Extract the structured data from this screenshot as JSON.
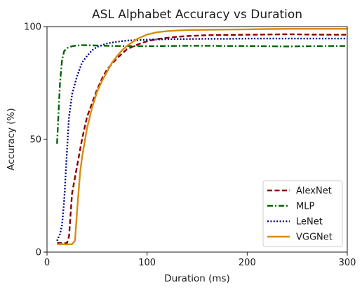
{
  "chart_data": {
    "type": "line",
    "title": "ASL Alphabet Accuracy vs Duration",
    "xlabel": "Duration",
    "xlabel_unit": "(ms)",
    "ylabel": "Accuracy (%)",
    "xlim": [
      0,
      300
    ],
    "ylim": [
      0,
      100
    ],
    "xticks": [
      0,
      100,
      200,
      300
    ],
    "yticks": [
      0,
      50,
      100
    ],
    "grid": false,
    "legend_position": "lower-right",
    "series": [
      {
        "name": "AlexNet",
        "color": "#8b0000",
        "style": "dashed",
        "x": [
          10,
          15,
          20,
          22,
          25,
          30,
          35,
          40,
          45,
          50,
          55,
          60,
          70,
          80,
          90,
          100,
          110,
          120,
          130,
          140,
          150,
          160,
          180,
          200,
          220,
          240,
          260,
          280,
          300
        ],
        "y": [
          4,
          4,
          4,
          7,
          26,
          38,
          50,
          60,
          66,
          72,
          77,
          81,
          86,
          90,
          92,
          93.5,
          94.5,
          95,
          95.5,
          95.8,
          96,
          96.2,
          96.3,
          96.4,
          96.5,
          96.6,
          96.5,
          96.4,
          96.4
        ]
      },
      {
        "name": "MLP",
        "color": "#006400",
        "style": "dashdot",
        "x": [
          10,
          13,
          15,
          17,
          20,
          25,
          30,
          35,
          40,
          50,
          60,
          70,
          80,
          100,
          120,
          140,
          160,
          180,
          200,
          220,
          240,
          260,
          280,
          300
        ],
        "y": [
          48,
          75,
          85,
          89,
          90.5,
          91.3,
          91.6,
          91.8,
          91.7,
          91.6,
          91.5,
          91.4,
          91.4,
          91.3,
          91.4,
          91.5,
          91.5,
          91.4,
          91.4,
          91.3,
          91.2,
          91.3,
          91.4,
          91.4
        ]
      },
      {
        "name": "LeNet",
        "color": "#00008b",
        "style": "dotted",
        "x": [
          10,
          13,
          15,
          17,
          20,
          22,
          25,
          30,
          35,
          40,
          45,
          50,
          60,
          70,
          80,
          100,
          120,
          140,
          160,
          180,
          200,
          220,
          240,
          260,
          280,
          300
        ],
        "y": [
          5,
          8,
          12,
          22,
          45,
          60,
          70,
          78,
          84,
          87,
          89.5,
          91,
          92.5,
          93.3,
          93.8,
          94.2,
          94.4,
          94.5,
          94.6,
          94.6,
          94.7,
          94.7,
          94.7,
          94.7,
          94.7,
          94.7
        ]
      },
      {
        "name": "VGGNet",
        "color": "#d88c10",
        "style": "solid",
        "x": [
          10,
          15,
          20,
          25,
          28,
          30,
          33,
          35,
          40,
          45,
          50,
          55,
          60,
          65,
          70,
          75,
          80,
          90,
          100,
          110,
          120,
          140,
          160,
          180,
          200,
          220,
          240,
          260,
          280,
          300
        ],
        "y": [
          3.5,
          3.5,
          3.4,
          3.5,
          5,
          18,
          35,
          42,
          55,
          64,
          71,
          76,
          80,
          84,
          87,
          89.5,
          91.5,
          94.5,
          96.5,
          97.5,
          98,
          98.5,
          98.6,
          98.7,
          98.8,
          98.9,
          99,
          99,
          99,
          99
        ]
      }
    ]
  }
}
